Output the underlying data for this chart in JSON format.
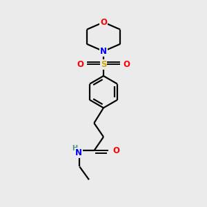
{
  "bg_color": "#ebebeb",
  "atom_colors": {
    "N": "#0000ee",
    "O": "#ff0000",
    "S": "#ccaa00",
    "H": "#4a9090"
  },
  "line_color": "#000000",
  "line_width": 1.6,
  "font_size": 8.5
}
